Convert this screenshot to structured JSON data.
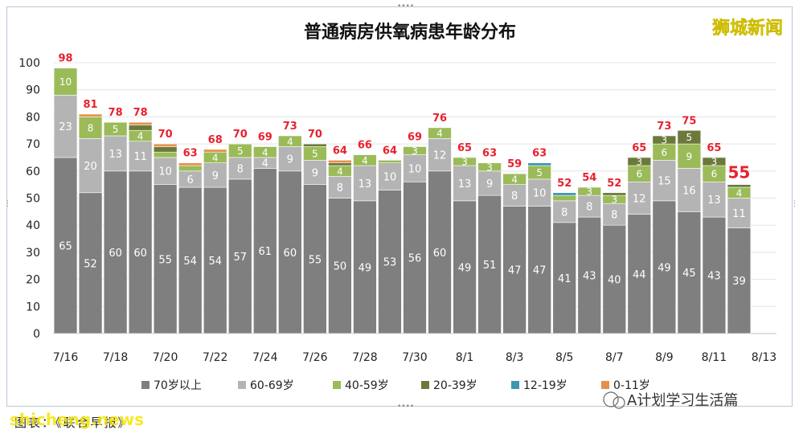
{
  "brand_logo": "狮城新闻",
  "account_name": "A计划学习生活篇",
  "footer": {
    "caption": "图表：《联合早报》",
    "watermark": "shicheng.news"
  },
  "colors": {
    "age70plus": "#7f7f7f",
    "age60_69": "#b4b4b4",
    "age40_59": "#9bbb59",
    "age20_39": "#6b7a3a",
    "age12_19": "#3d98b0",
    "age0_11": "#e88f4c",
    "total_label": "#e8212f",
    "brand": "#f1e300"
  },
  "chart_data": {
    "type": "bar",
    "stacked": true,
    "title": "普通病房供氧病患年龄分布",
    "ylim": [
      0,
      100
    ],
    "yticks": [
      0,
      10,
      20,
      30,
      40,
      50,
      60,
      70,
      80,
      90,
      100
    ],
    "grid": true,
    "legend_position": "bottom",
    "categories": [
      "7/16",
      "7/17",
      "7/18",
      "7/19",
      "7/20",
      "7/21",
      "7/22",
      "7/23",
      "7/24",
      "7/25",
      "7/26",
      "7/27",
      "7/28",
      "7/29",
      "7/30",
      "7/31",
      "8/1",
      "8/2",
      "8/3",
      "8/4",
      "8/5",
      "8/6",
      "8/7",
      "8/8",
      "8/9",
      "8/10",
      "8/11",
      "8/12",
      "8/13"
    ],
    "xtick_labels": [
      "7/16",
      "7/18",
      "7/20",
      "7/22",
      "7/24",
      "7/26",
      "7/28",
      "7/30",
      "8/1",
      "8/3",
      "8/5",
      "8/7",
      "8/9",
      "8/11",
      "8/13"
    ],
    "series": [
      {
        "name": "70岁以上",
        "values": [
          65,
          52,
          60,
          60,
          55,
          54,
          54,
          57,
          61,
          60,
          55,
          50,
          49,
          53,
          56,
          60,
          49,
          51,
          47,
          47,
          41,
          43,
          40,
          44,
          49,
          45,
          43,
          39,
          null
        ]
      },
      {
        "name": "60-69岁",
        "values": [
          23,
          20,
          13,
          11,
          10,
          6,
          9,
          8,
          4,
          9,
          9,
          8,
          13,
          10,
          10,
          12,
          13,
          9,
          8,
          10,
          8,
          8,
          8,
          12,
          15,
          16,
          13,
          11,
          null
        ]
      },
      {
        "name": "40-59岁",
        "values": [
          10,
          8,
          5,
          4,
          2,
          2,
          4,
          5,
          4,
          4,
          5,
          4,
          4,
          1,
          3,
          4,
          3,
          3,
          4,
          5,
          2,
          3,
          3,
          6,
          6,
          9,
          6,
          4,
          null
        ]
      },
      {
        "name": "20-39岁",
        "values": [
          0,
          0,
          0,
          2,
          2,
          0,
          0,
          0,
          0,
          0,
          1,
          1,
          0,
          0,
          0,
          0,
          0,
          0,
          0,
          0,
          0,
          0,
          1,
          3,
          3,
          5,
          3,
          1,
          null
        ]
      },
      {
        "name": "12-19岁",
        "values": [
          0,
          0,
          0,
          0,
          0,
          0,
          0,
          0,
          0,
          0,
          0,
          0,
          0,
          0,
          0,
          0,
          0,
          0,
          0,
          1,
          1,
          0,
          0,
          0,
          0,
          0,
          0,
          0,
          null
        ]
      },
      {
        "name": "0-11岁",
        "values": [
          0,
          1,
          0,
          1,
          1,
          1,
          1,
          0,
          0,
          0,
          0,
          1,
          0,
          0,
          0,
          0,
          0,
          0,
          0,
          0,
          0,
          0,
          0,
          0,
          0,
          0,
          0,
          0,
          null
        ]
      }
    ],
    "totals": [
      98,
      81,
      78,
      78,
      70,
      63,
      68,
      70,
      69,
      73,
      70,
      64,
      66,
      64,
      69,
      76,
      65,
      63,
      59,
      63,
      52,
      54,
      52,
      65,
      73,
      75,
      65,
      55,
      null
    ]
  }
}
